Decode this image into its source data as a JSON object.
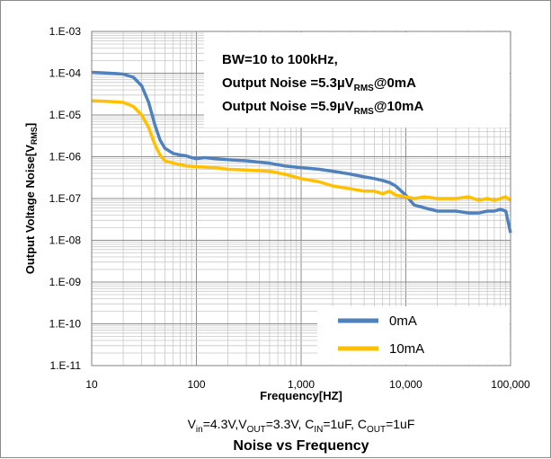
{
  "chart_data": {
    "type": "line",
    "title": "Noise vs Frequency",
    "xlabel": "Frequency[HZ]",
    "ylabel": {
      "main": "Output Voltage Noise[V",
      "sub": "RMS",
      "end": "]"
    },
    "xscale": "log",
    "yscale": "log",
    "xlim": [
      10,
      100000
    ],
    "ylim": [
      1e-11,
      0.001
    ],
    "x_tick_values": [
      10,
      100,
      1000,
      10000,
      100000
    ],
    "x_tick_labels": [
      "10",
      "100",
      "1,000",
      "10,000",
      "100,000"
    ],
    "y_tick_values": [
      0.001,
      0.0001,
      1e-05,
      1e-06,
      1e-07,
      1e-08,
      1e-09,
      1e-10,
      1e-11
    ],
    "y_tick_labels": [
      "1.E-03",
      "1.E-04",
      "1.E-05",
      "1.E-06",
      "1.E-07",
      "1.E-08",
      "1.E-09",
      "1.E-10",
      "1.E-11"
    ],
    "grid": true,
    "legend_position": "bottom-right",
    "annotation": {
      "line1": "BW=10 to 100kHz,",
      "line2": {
        "a": "Output Noise =5.3µV",
        "sub": "RMS",
        "b": "@0mA"
      },
      "line3": {
        "a": "Output Noise =5.9µV",
        "sub": "RMS",
        "b": "@10mA"
      }
    },
    "conditions": [
      {
        "t": "V",
        "s": ""
      },
      {
        "t": "in",
        "s": "sub"
      },
      {
        "t": "=4.3V,V",
        "s": ""
      },
      {
        "t": "OUT",
        "s": "sub"
      },
      {
        "t": "=3.3V, C",
        "s": ""
      },
      {
        "t": "IN",
        "s": "sub"
      },
      {
        "t": "=1uF, C",
        "s": ""
      },
      {
        "t": "OUT",
        "s": "sub"
      },
      {
        "t": "=1uF",
        "s": ""
      }
    ],
    "series": [
      {
        "name": "0mA",
        "color": "#4f81bd",
        "x": [
          10,
          15,
          20,
          25,
          30,
          35,
          40,
          45,
          50,
          60,
          70,
          80,
          90,
          100,
          120,
          150,
          200,
          300,
          500,
          700,
          1000,
          1500,
          2000,
          3000,
          4000,
          5000,
          6000,
          7000,
          8000,
          10000,
          12000,
          15000,
          20000,
          30000,
          40000,
          50000,
          60000,
          70000,
          80000,
          90000,
          100000
        ],
        "y": [
          0.000105,
          0.0001,
          9.5e-05,
          8e-05,
          5e-05,
          2e-05,
          6e-06,
          2.5e-06,
          1.6e-06,
          1.2e-06,
          1.1e-06,
          1.05e-06,
          9.5e-07,
          9e-07,
          9.5e-07,
          9e-07,
          8.5e-07,
          8e-07,
          7e-07,
          6e-07,
          5.5e-07,
          5e-07,
          4.5e-07,
          3.8e-07,
          3.3e-07,
          3e-07,
          2.7e-07,
          2.4e-07,
          2e-07,
          1.2e-07,
          7e-08,
          6e-08,
          5e-08,
          5e-08,
          4.5e-08,
          4.5e-08,
          5e-08,
          5e-08,
          5.5e-08,
          5e-08,
          1.5e-08
        ]
      },
      {
        "name": "10mA",
        "color": "#ffc000",
        "x": [
          10,
          15,
          20,
          25,
          30,
          35,
          40,
          45,
          50,
          60,
          70,
          80,
          100,
          150,
          200,
          300,
          500,
          700,
          1000,
          1500,
          2000,
          3000,
          4000,
          5000,
          6000,
          7000,
          8000,
          10000,
          12000,
          15000,
          20000,
          30000,
          40000,
          50000,
          60000,
          70000,
          80000,
          90000,
          100000
        ],
        "y": [
          2.2e-05,
          2.1e-05,
          2e-05,
          1.6e-05,
          1e-05,
          5e-06,
          2e-06,
          1.1e-06,
          8e-07,
          7e-07,
          6.5e-07,
          6e-07,
          5.8e-07,
          5.5e-07,
          5e-07,
          4.8e-07,
          4.5e-07,
          3.8e-07,
          3e-07,
          2.5e-07,
          2e-07,
          1.7e-07,
          1.5e-07,
          1.5e-07,
          1.3e-07,
          1.5e-07,
          1.2e-07,
          1.1e-07,
          1e-07,
          1.1e-07,
          1e-07,
          1e-07,
          1.1e-07,
          9e-08,
          1e-07,
          9e-08,
          1e-07,
          1.1e-07,
          9e-08
        ]
      }
    ]
  }
}
